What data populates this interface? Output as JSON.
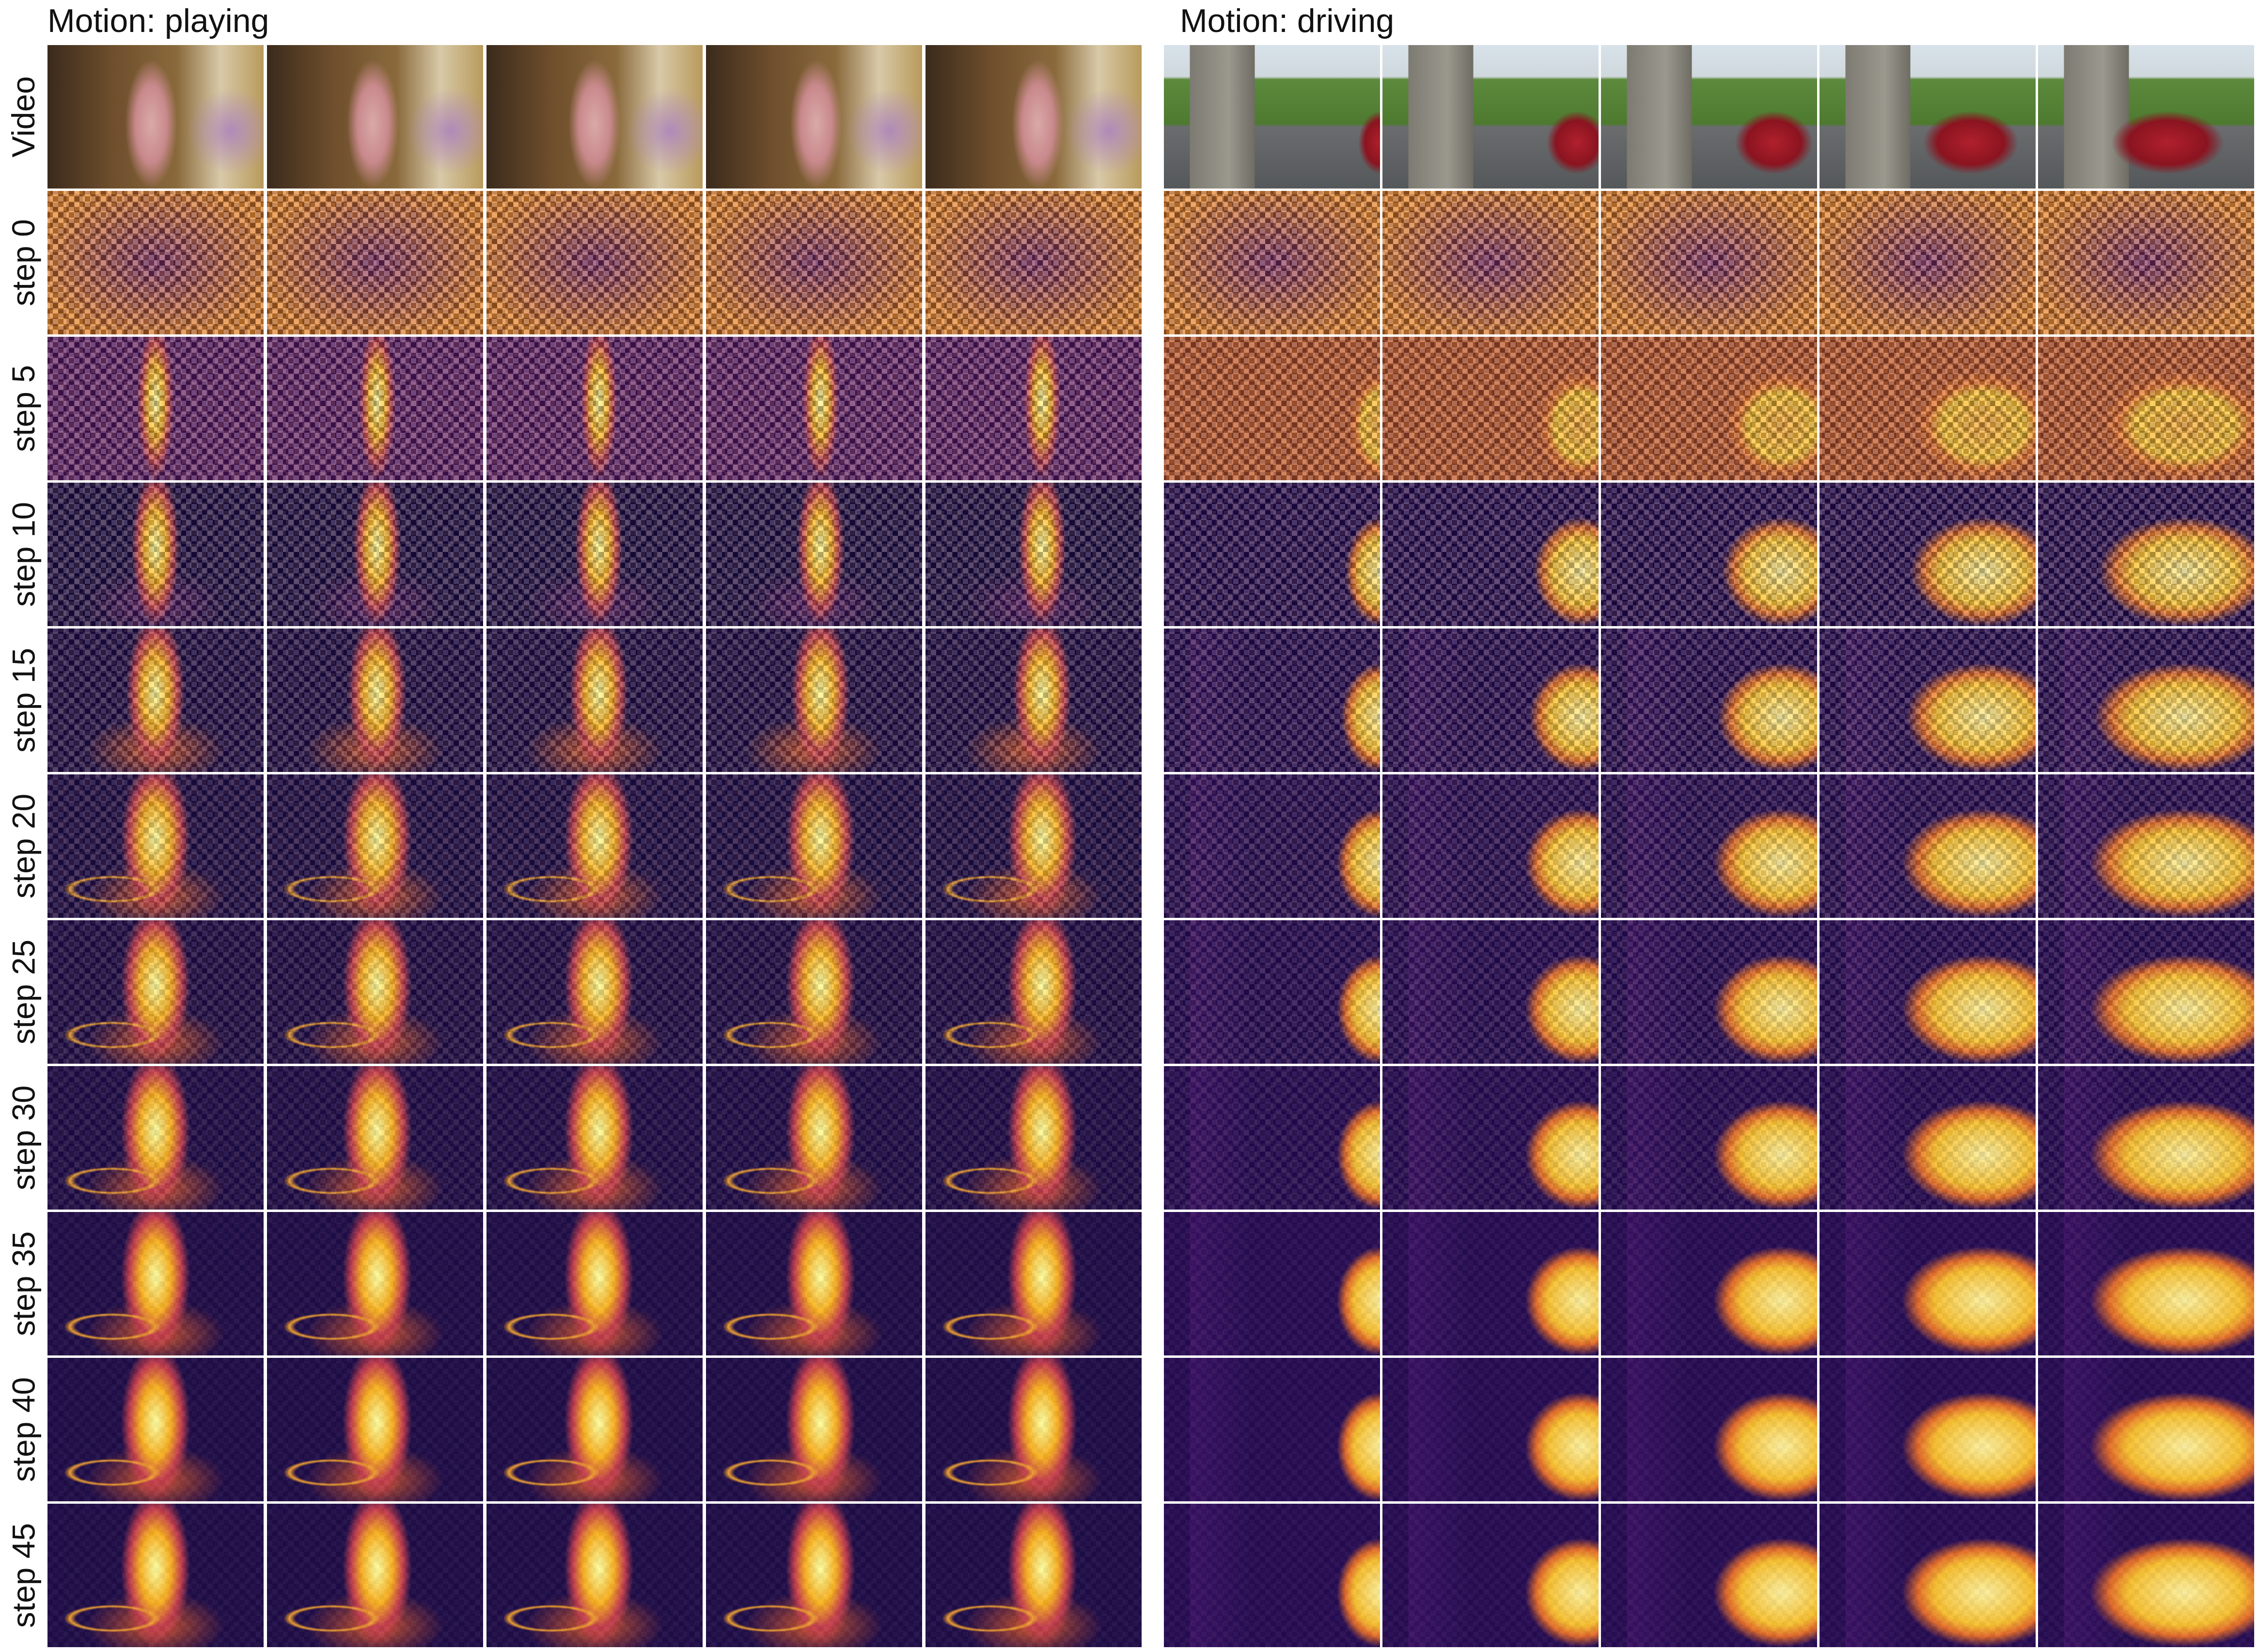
{
  "panels": [
    {
      "title": "Motion: playing"
    },
    {
      "title": "Motion: driving"
    }
  ],
  "row_labels": [
    "Video",
    "step 0",
    "step 5",
    "step 10",
    "step 15",
    "step 20",
    "step 25",
    "step 30",
    "step 35",
    "step 40",
    "step 45"
  ]
}
